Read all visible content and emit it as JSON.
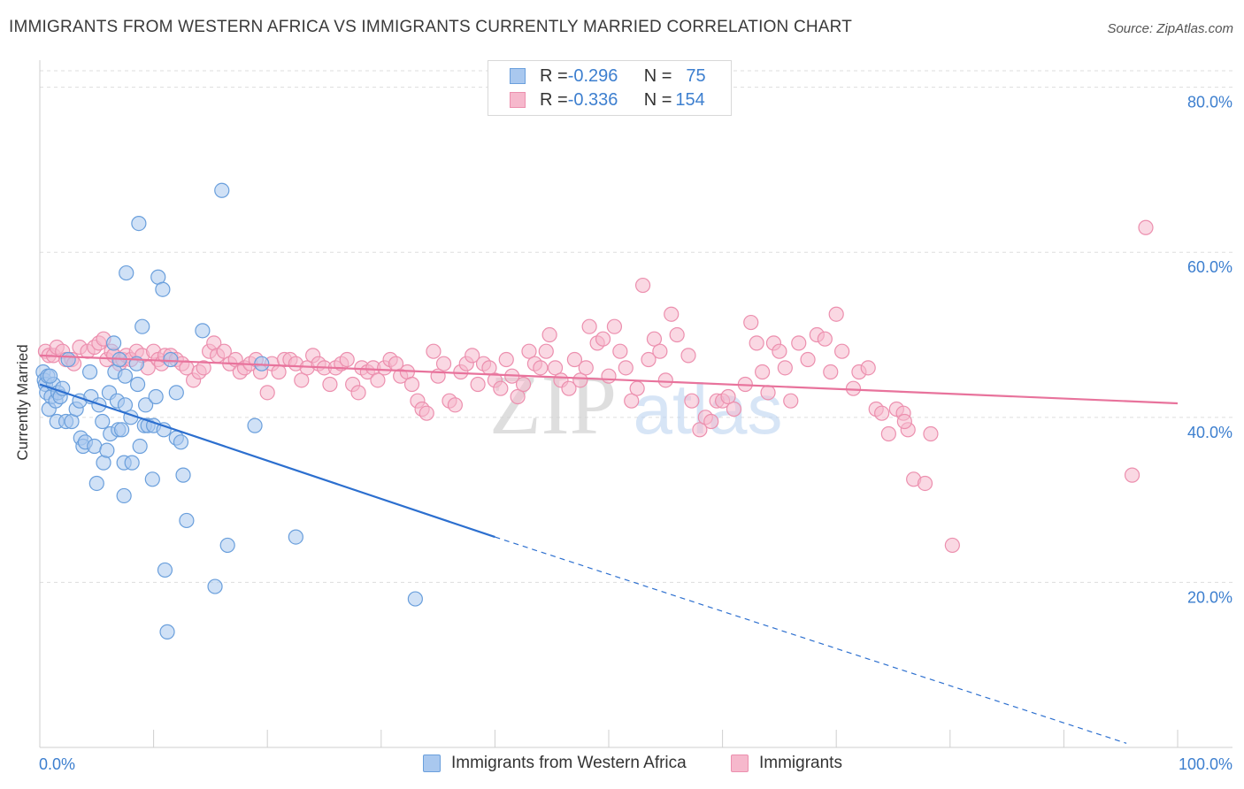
{
  "title": "IMMIGRANTS FROM WESTERN AFRICA VS IMMIGRANTS CURRENTLY MARRIED CORRELATION CHART",
  "source": "Source: ZipAtlas.com",
  "watermark": {
    "zip": "ZIP",
    "atlas": "atlas"
  },
  "legend_top": {
    "rows": [
      {
        "r_label": "R = ",
        "r_value": "-0.296",
        "n_label": "N = ",
        "n_value": "75"
      },
      {
        "r_label": "R = ",
        "r_value": "-0.336",
        "n_label": "N = ",
        "n_value": "154"
      }
    ]
  },
  "colors": {
    "blue_fill": "#a9c8ef",
    "blue_stroke": "#6a9fdc",
    "blue_line": "#2c6fcf",
    "pink_fill": "#f6b8cc",
    "pink_stroke": "#ec8fae",
    "pink_line": "#e8739c",
    "tick_text": "#3d7fcf",
    "grid": "#dddddd"
  },
  "chart_data": {
    "type": "scatter",
    "title": "IMMIGRANTS FROM WESTERN AFRICA VS IMMIGRANTS CURRENTLY MARRIED CORRELATION CHART",
    "xlabel": "",
    "ylabel": "Currently Married",
    "xlim": [
      0,
      100
    ],
    "ylim": [
      0,
      82
    ],
    "x_tick_labels": [
      "0.0%",
      "100.0%"
    ],
    "y_ticks": [
      20,
      40,
      60,
      80
    ],
    "y_tick_labels": [
      "20.0%",
      "40.0%",
      "60.0%",
      "80.0%"
    ],
    "grid": "horizontal dashed",
    "legend": "bottom-center",
    "series": [
      {
        "name": "Immigrants from Western Africa",
        "color": "#a9c8ef",
        "trend": {
          "x0": 0,
          "y0": 44.0,
          "x1": 40.0,
          "y1": 25.5,
          "dash_to_x": 95.5,
          "dash_to_y": 0.5
        },
        "points": [
          [
            0.3,
            45.5
          ],
          [
            0.4,
            44.5
          ],
          [
            0.5,
            44.0
          ],
          [
            0.6,
            43.0
          ],
          [
            0.7,
            45.0
          ],
          [
            0.8,
            41.0
          ],
          [
            1.0,
            42.5
          ],
          [
            1.2,
            44.0
          ],
          [
            1.4,
            42.0
          ],
          [
            1.5,
            39.5
          ],
          [
            1.6,
            43.0
          ],
          [
            1.8,
            42.5
          ],
          [
            2.0,
            43.5
          ],
          [
            2.3,
            39.5
          ],
          [
            2.5,
            47.0
          ],
          [
            2.8,
            39.5
          ],
          [
            3.2,
            41.0
          ],
          [
            3.5,
            42.0
          ],
          [
            3.6,
            37.5
          ],
          [
            3.8,
            36.5
          ],
          [
            4.0,
            37.0
          ],
          [
            4.4,
            45.5
          ],
          [
            4.5,
            42.5
          ],
          [
            4.8,
            36.5
          ],
          [
            5.0,
            32.0
          ],
          [
            5.2,
            41.5
          ],
          [
            5.5,
            39.5
          ],
          [
            5.6,
            34.5
          ],
          [
            5.9,
            36.0
          ],
          [
            6.1,
            43.0
          ],
          [
            6.2,
            38.0
          ],
          [
            6.5,
            49.0
          ],
          [
            6.6,
            45.5
          ],
          [
            6.8,
            42.0
          ],
          [
            6.9,
            38.5
          ],
          [
            7.0,
            47.0
          ],
          [
            7.2,
            38.5
          ],
          [
            7.4,
            34.5
          ],
          [
            7.5,
            41.5
          ],
          [
            7.6,
            57.5
          ],
          [
            7.4,
            30.5
          ],
          [
            7.5,
            45.0
          ],
          [
            8.0,
            40.0
          ],
          [
            8.1,
            34.5
          ],
          [
            8.6,
            44.0
          ],
          [
            8.5,
            46.5
          ],
          [
            8.7,
            63.5
          ],
          [
            8.8,
            36.5
          ],
          [
            9.0,
            51.0
          ],
          [
            9.2,
            39.0
          ],
          [
            9.3,
            41.5
          ],
          [
            9.5,
            39.0
          ],
          [
            10.0,
            39.0
          ],
          [
            9.9,
            32.5
          ],
          [
            10.2,
            42.5
          ],
          [
            10.4,
            57.0
          ],
          [
            10.8,
            55.5
          ],
          [
            10.9,
            38.5
          ],
          [
            11.0,
            21.5
          ],
          [
            11.2,
            14.0
          ],
          [
            11.5,
            47.0
          ],
          [
            12.0,
            43.0
          ],
          [
            12.0,
            37.5
          ],
          [
            12.4,
            37.0
          ],
          [
            12.6,
            33.0
          ],
          [
            12.9,
            27.5
          ],
          [
            14.3,
            50.5
          ],
          [
            15.4,
            19.5
          ],
          [
            16.0,
            67.5
          ],
          [
            16.5,
            24.5
          ],
          [
            18.9,
            39.0
          ],
          [
            19.5,
            46.5
          ],
          [
            22.5,
            25.5
          ],
          [
            33.0,
            18.0
          ],
          [
            0.9,
            45.0
          ]
        ]
      },
      {
        "name": "Immigrants",
        "color": "#f6b8cc",
        "trend": {
          "x0": 0,
          "y0": 47.5,
          "x1": 100,
          "y1": 41.7
        },
        "points": [
          [
            0.5,
            48.0
          ],
          [
            0.8,
            47.5
          ],
          [
            1.2,
            47.5
          ],
          [
            1.5,
            48.5
          ],
          [
            2.0,
            48.0
          ],
          [
            2.3,
            47.0
          ],
          [
            2.8,
            47.0
          ],
          [
            3.0,
            46.5
          ],
          [
            3.5,
            48.5
          ],
          [
            4.2,
            48.0
          ],
          [
            4.8,
            48.5
          ],
          [
            5.2,
            49.0
          ],
          [
            5.6,
            49.5
          ],
          [
            5.9,
            47.0
          ],
          [
            6.3,
            48.0
          ],
          [
            6.5,
            47.5
          ],
          [
            7.0,
            46.5
          ],
          [
            7.3,
            47.0
          ],
          [
            7.6,
            47.5
          ],
          [
            8.0,
            47.0
          ],
          [
            8.5,
            48.0
          ],
          [
            9.0,
            47.5
          ],
          [
            9.5,
            46.0
          ],
          [
            10.0,
            48.0
          ],
          [
            10.4,
            47.0
          ],
          [
            10.7,
            46.5
          ],
          [
            11.0,
            47.5
          ],
          [
            11.5,
            47.5
          ],
          [
            12.0,
            47.0
          ],
          [
            12.5,
            46.5
          ],
          [
            12.9,
            46.0
          ],
          [
            13.5,
            44.5
          ],
          [
            14.0,
            45.5
          ],
          [
            14.4,
            46.0
          ],
          [
            14.9,
            48.0
          ],
          [
            15.3,
            49.0
          ],
          [
            15.6,
            47.5
          ],
          [
            16.2,
            48.0
          ],
          [
            16.7,
            46.5
          ],
          [
            17.2,
            47.0
          ],
          [
            17.6,
            45.5
          ],
          [
            18.0,
            46.0
          ],
          [
            18.5,
            46.5
          ],
          [
            19.0,
            47.0
          ],
          [
            19.4,
            45.5
          ],
          [
            20.0,
            43.0
          ],
          [
            20.4,
            46.5
          ],
          [
            21.0,
            45.5
          ],
          [
            21.5,
            47.0
          ],
          [
            22.0,
            47.0
          ],
          [
            22.5,
            46.5
          ],
          [
            23.0,
            44.5
          ],
          [
            23.5,
            46.0
          ],
          [
            24.0,
            47.5
          ],
          [
            24.5,
            46.5
          ],
          [
            25.0,
            46.0
          ],
          [
            25.5,
            44.0
          ],
          [
            26.0,
            46.0
          ],
          [
            26.5,
            46.5
          ],
          [
            27.0,
            47.0
          ],
          [
            27.5,
            44.0
          ],
          [
            28.0,
            43.0
          ],
          [
            28.3,
            46.0
          ],
          [
            28.8,
            45.5
          ],
          [
            29.3,
            46.0
          ],
          [
            29.7,
            44.5
          ],
          [
            30.3,
            46.0
          ],
          [
            30.8,
            47.0
          ],
          [
            31.3,
            46.5
          ],
          [
            31.7,
            45.0
          ],
          [
            32.3,
            45.5
          ],
          [
            32.7,
            44.0
          ],
          [
            33.2,
            42.0
          ],
          [
            33.6,
            41.0
          ],
          [
            34.0,
            40.5
          ],
          [
            34.6,
            48.0
          ],
          [
            35.0,
            45.0
          ],
          [
            35.5,
            46.5
          ],
          [
            36.0,
            42.0
          ],
          [
            36.5,
            41.5
          ],
          [
            37.0,
            45.5
          ],
          [
            37.5,
            46.5
          ],
          [
            38.0,
            47.5
          ],
          [
            38.5,
            44.0
          ],
          [
            39.0,
            46.5
          ],
          [
            39.5,
            46.0
          ],
          [
            40.0,
            44.5
          ],
          [
            40.5,
            43.5
          ],
          [
            41.0,
            47.0
          ],
          [
            41.5,
            45.0
          ],
          [
            42.0,
            42.5
          ],
          [
            42.5,
            44.0
          ],
          [
            43.0,
            48.0
          ],
          [
            43.5,
            46.5
          ],
          [
            44.0,
            46.0
          ],
          [
            44.5,
            48.0
          ],
          [
            44.8,
            50.0
          ],
          [
            45.3,
            46.0
          ],
          [
            45.8,
            44.5
          ],
          [
            46.5,
            43.5
          ],
          [
            47.0,
            47.0
          ],
          [
            47.5,
            44.5
          ],
          [
            48.0,
            46.0
          ],
          [
            48.3,
            51.0
          ],
          [
            49.0,
            49.0
          ],
          [
            49.5,
            49.5
          ],
          [
            50.0,
            45.0
          ],
          [
            50.5,
            51.0
          ],
          [
            51.0,
            48.0
          ],
          [
            51.5,
            46.0
          ],
          [
            52.0,
            42.0
          ],
          [
            52.5,
            43.5
          ],
          [
            53.0,
            56.0
          ],
          [
            53.5,
            47.0
          ],
          [
            54.0,
            49.5
          ],
          [
            54.5,
            48.0
          ],
          [
            55.0,
            44.5
          ],
          [
            55.5,
            52.5
          ],
          [
            56.0,
            50.0
          ],
          [
            57.0,
            47.5
          ],
          [
            57.3,
            42.0
          ],
          [
            58.0,
            38.5
          ],
          [
            58.5,
            40.0
          ],
          [
            59.0,
            39.5
          ],
          [
            59.5,
            42.0
          ],
          [
            60.0,
            42.0
          ],
          [
            60.5,
            42.5
          ],
          [
            61.0,
            41.0
          ],
          [
            62.0,
            44.0
          ],
          [
            62.5,
            51.5
          ],
          [
            63.0,
            49.0
          ],
          [
            63.5,
            45.5
          ],
          [
            64.0,
            43.0
          ],
          [
            64.5,
            49.0
          ],
          [
            65.0,
            48.0
          ],
          [
            65.5,
            46.0
          ],
          [
            66.0,
            42.0
          ],
          [
            66.7,
            49.0
          ],
          [
            67.5,
            47.0
          ],
          [
            68.3,
            50.0
          ],
          [
            69.0,
            49.5
          ],
          [
            69.5,
            45.5
          ],
          [
            70.0,
            52.5
          ],
          [
            70.5,
            48.0
          ],
          [
            71.5,
            43.5
          ],
          [
            72.0,
            45.5
          ],
          [
            72.8,
            46.0
          ],
          [
            73.5,
            41.0
          ],
          [
            74.0,
            40.5
          ],
          [
            74.6,
            38.0
          ],
          [
            75.3,
            41.0
          ],
          [
            75.9,
            40.5
          ],
          [
            76.3,
            38.5
          ],
          [
            76.8,
            32.5
          ],
          [
            77.8,
            32.0
          ],
          [
            78.3,
            38.0
          ],
          [
            80.2,
            24.5
          ],
          [
            96.0,
            33.0
          ],
          [
            97.2,
            63.0
          ],
          [
            76.0,
            39.5
          ]
        ]
      }
    ]
  },
  "bottom_legend": {
    "items": [
      {
        "label": "Immigrants from Western Africa"
      },
      {
        "label": "Immigrants"
      }
    ]
  }
}
